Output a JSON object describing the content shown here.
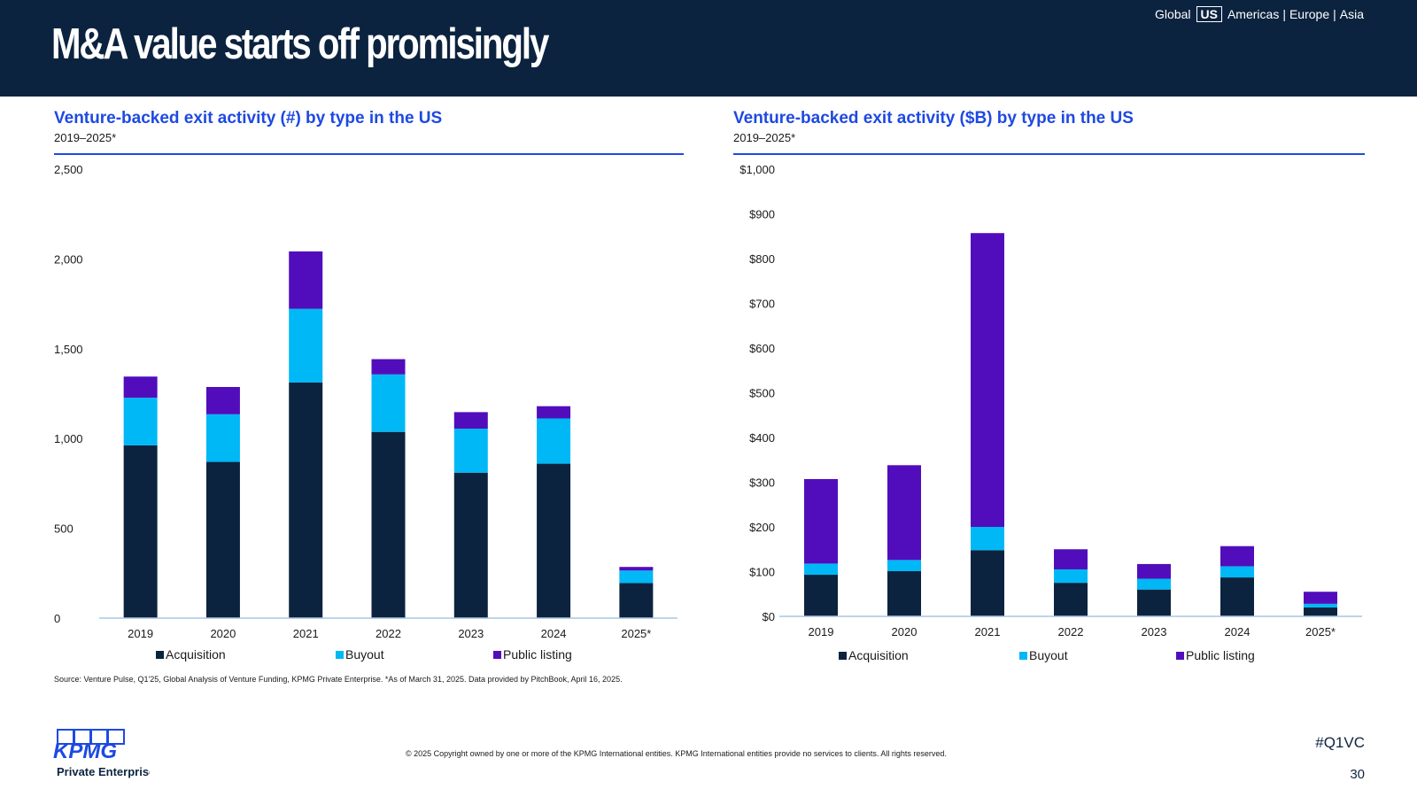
{
  "header": {
    "title": "M&A value starts off promisingly",
    "regions": [
      "Global",
      "US",
      "Americas",
      "Europe",
      "Asia"
    ],
    "active_region": "US"
  },
  "colors": {
    "header_bg": "#0c233f",
    "accent": "#1e49e2",
    "acquisition": "#0c233f",
    "buyout": "#00b8f5",
    "public_listing": "#510dbc"
  },
  "chart_data": [
    {
      "id": "count",
      "type": "bar",
      "stacked": true,
      "title": "Venture-backed exit activity (#) by type in the US",
      "subtitle": "2019–2025*",
      "categories": [
        "2019",
        "2020",
        "2021",
        "2022",
        "2023",
        "2024",
        "2025*"
      ],
      "series": [
        {
          "name": "Acquisition",
          "color": "#0c233f",
          "values": [
            962,
            870,
            1312,
            1037,
            810,
            860,
            195
          ]
        },
        {
          "name": "Buyout",
          "color": "#00b8f5",
          "values": [
            265,
            265,
            410,
            320,
            245,
            252,
            70
          ]
        },
        {
          "name": "Public listing",
          "color": "#510dbc",
          "values": [
            118,
            152,
            320,
            85,
            92,
            68,
            20
          ]
        }
      ],
      "ylim": [
        0,
        2500
      ],
      "yticks": [
        0,
        500,
        1000,
        1500,
        2000,
        2500
      ],
      "ytick_labels": [
        "0",
        "500",
        "1,000",
        "1,500",
        "2,000",
        "2,500"
      ],
      "legend": "bottom"
    },
    {
      "id": "value",
      "type": "bar",
      "stacked": true,
      "title": "Venture-backed exit activity ($B) by type in the US",
      "subtitle": "2019–2025*",
      "categories": [
        "2019",
        "2020",
        "2021",
        "2022",
        "2023",
        "2024",
        "2025*"
      ],
      "series": [
        {
          "name": "Acquisition",
          "color": "#0c233f",
          "values": [
            93,
            101,
            148,
            75,
            60,
            87,
            20
          ]
        },
        {
          "name": "Buyout",
          "color": "#00b8f5",
          "values": [
            25,
            25,
            52,
            30,
            24,
            25,
            8
          ]
        },
        {
          "name": "Public listing",
          "color": "#510dbc",
          "values": [
            189,
            212,
            657,
            45,
            33,
            45,
            27
          ]
        }
      ],
      "ylim": [
        0,
        1000
      ],
      "yticks": [
        0,
        100,
        200,
        300,
        400,
        500,
        600,
        700,
        800,
        900,
        1000
      ],
      "ytick_labels": [
        "$0",
        "$100",
        "$200",
        "$300",
        "$400",
        "$500",
        "$600",
        "$700",
        "$800",
        "$900",
        "$1,000"
      ],
      "legend": "bottom"
    }
  ],
  "footer": {
    "source": "Source: Venture Pulse, Q1'25, Global Analysis of Venture Funding, KPMG Private Enterprise. *As of March 31, 2025. Data provided by PitchBook, April 16, 2025.",
    "logo_text": "KPMG",
    "logo_subtext": "Private Enterprise",
    "copyright": "© 2025 Copyright owned by one or more of the KPMG International entities. KPMG International entities provide no services to clients. All rights reserved.",
    "hashtag": "#Q1VC",
    "page_number": "30"
  }
}
